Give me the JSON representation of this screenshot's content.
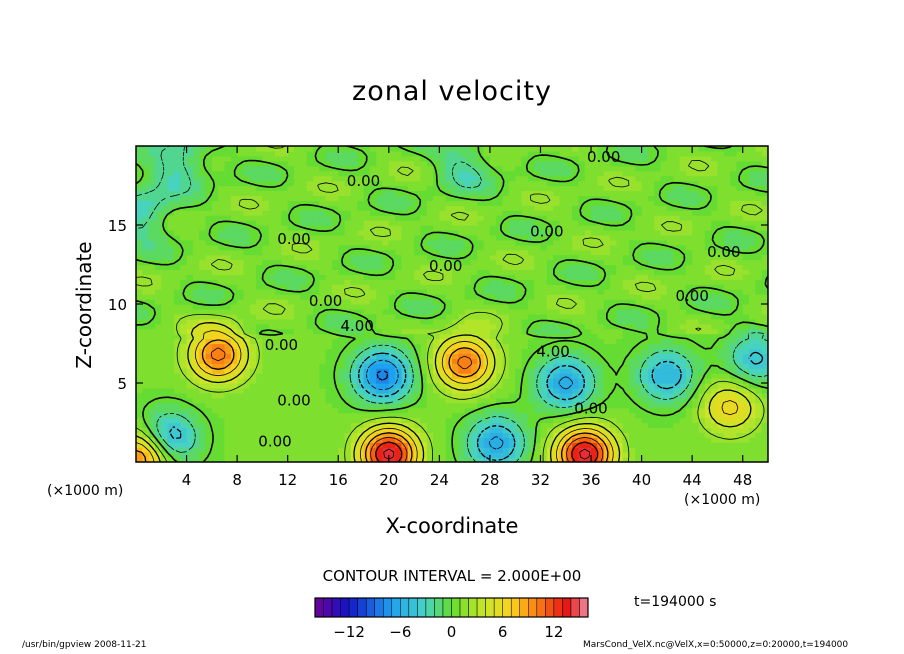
{
  "chart_data": {
    "type": "heatmap",
    "title": "zonal velocity",
    "xlabel": "X-coordinate",
    "ylabel": "Z-coordinate",
    "x_unit_left": "(×1000 m)",
    "x_unit_right": "(×1000 m)",
    "xlim": [
      0,
      50
    ],
    "ylim": [
      0,
      20
    ],
    "x_ticks": [
      4,
      8,
      12,
      16,
      20,
      24,
      28,
      32,
      36,
      40,
      44,
      48
    ],
    "y_ticks": [
      5,
      10,
      15
    ],
    "contour_interval_text": "CONTOUR INTERVAL = 2.000E+00",
    "contour_labels": [
      {
        "text": "0.00",
        "x": 37.0,
        "z": 19.3
      },
      {
        "text": "0.00",
        "x": 18.0,
        "z": 17.8
      },
      {
        "text": "0.00",
        "x": 32.5,
        "z": 14.6
      },
      {
        "text": "0.00",
        "x": 12.5,
        "z": 14.1
      },
      {
        "text": "0.00",
        "x": 46.5,
        "z": 13.3
      },
      {
        "text": "0.00",
        "x": 24.5,
        "z": 12.4
      },
      {
        "text": "0.00",
        "x": 44.0,
        "z": 10.5
      },
      {
        "text": "0.00",
        "x": 15.0,
        "z": 10.2
      },
      {
        "text": "4.00",
        "x": 17.5,
        "z": 8.6
      },
      {
        "text": "0.00",
        "x": 11.5,
        "z": 7.4
      },
      {
        "text": "4.00",
        "x": 33.0,
        "z": 7.0
      },
      {
        "text": "0.00",
        "x": 12.5,
        "z": 3.9
      },
      {
        "text": "0.00",
        "x": 36.0,
        "z": 3.4
      },
      {
        "text": "0.00",
        "x": 11.0,
        "z": 1.3
      }
    ],
    "features": [
      {
        "x": 6.5,
        "z": 6.8,
        "value": 10
      },
      {
        "x": 19.5,
        "z": 5.5,
        "value": -9
      },
      {
        "x": 26.0,
        "z": 6.3,
        "value": 10
      },
      {
        "x": 34.0,
        "z": 5.0,
        "value": -7
      },
      {
        "x": 42.0,
        "z": 5.5,
        "value": -6
      },
      {
        "x": 47.0,
        "z": 3.5,
        "value": 6
      },
      {
        "x": 20.0,
        "z": 0.5,
        "value": 14
      },
      {
        "x": 35.5,
        "z": 0.5,
        "value": 14
      },
      {
        "x": 2.5,
        "z": 1.5,
        "value": -7
      },
      {
        "x": 0.5,
        "z": 0.4,
        "value": 10
      },
      {
        "x": 28.5,
        "z": 1.2,
        "value": -7
      },
      {
        "x": 49.0,
        "z": 6.5,
        "value": -5
      },
      {
        "x": 3.5,
        "z": 19.2,
        "value": -4
      },
      {
        "x": 26.0,
        "z": 19.0,
        "value": -3
      },
      {
        "x": 0.5,
        "z": 15.8,
        "value": -4
      }
    ],
    "colorbar": {
      "min": -16,
      "max": 16,
      "step": 1,
      "tick_labels": [
        "−12",
        "−6",
        "0",
        "6",
        "12"
      ],
      "tick_values": [
        -12,
        -6,
        0,
        6,
        12
      ]
    },
    "time_label": "t=194000 s",
    "footer_left": "/usr/bin/gpview  2008-11-21",
    "footer_right": "MarsCond_VelX.nc@VelX,x=0:50000,z=0:20000,t=194000",
    "grid": false
  }
}
